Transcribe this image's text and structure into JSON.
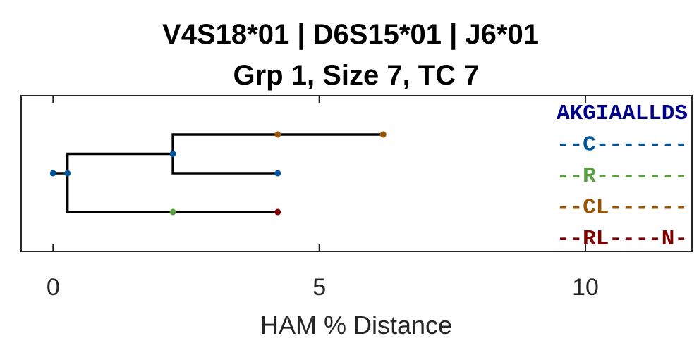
{
  "chart_data": {
    "type": "tree",
    "title": "V4S18*01 | D6S15*01 | J6*01",
    "subtitle": "Grp 1, Size 7, TC 7",
    "xlabel": "HAM % Distance",
    "xlim": [
      -0.6,
      12.0
    ],
    "xticks": [
      0,
      5,
      10
    ],
    "tick_labels": [
      "0",
      "5",
      "10"
    ],
    "grid": false,
    "colors": {
      "germline": "#00008b",
      "c": "#00569b",
      "r": "#5a9f3e",
      "cl": "#9a5300",
      "rl": "#800000",
      "branch": "#000000"
    },
    "nodes": [
      {
        "id": "root",
        "x": 0.0,
        "row": 2.0,
        "color": "#00569b"
      },
      {
        "id": "n1",
        "x": 0.27,
        "row": 2.0,
        "color": "#00569b"
      },
      {
        "id": "n2",
        "x": 2.25,
        "row": 1.0,
        "color": "#00569b"
      },
      {
        "id": "n3",
        "x": 4.22,
        "row": 0.0,
        "color": "#9a5300"
      },
      {
        "id": "n4",
        "x": 6.2,
        "row": 0.0,
        "color": "#9a5300"
      },
      {
        "id": "n5",
        "x": 4.22,
        "row": 2.0,
        "color": "#00569b"
      },
      {
        "id": "n6",
        "x": 2.25,
        "row": 4.0,
        "color": "#5a9f3e"
      },
      {
        "id": "n7",
        "x": 4.22,
        "row": 4.0,
        "color": "#800000"
      }
    ],
    "edges": [
      [
        "root",
        "n1"
      ],
      [
        "n1",
        "n2"
      ],
      [
        "n1",
        "n6"
      ],
      [
        "n2",
        "n3"
      ],
      [
        "n3",
        "n4"
      ],
      [
        "n2",
        "n5"
      ],
      [
        "n6",
        "n7"
      ]
    ],
    "sequences": [
      {
        "text": "AKGIAALLDS",
        "color": "#00008b"
      },
      {
        "text": "--C-------",
        "color": "#00569b"
      },
      {
        "text": "--R-------",
        "color": "#5a9f3e"
      },
      {
        "text": "--CL------",
        "color": "#9a5300"
      },
      {
        "text": "--RL----N-",
        "color": "#800000"
      }
    ]
  }
}
